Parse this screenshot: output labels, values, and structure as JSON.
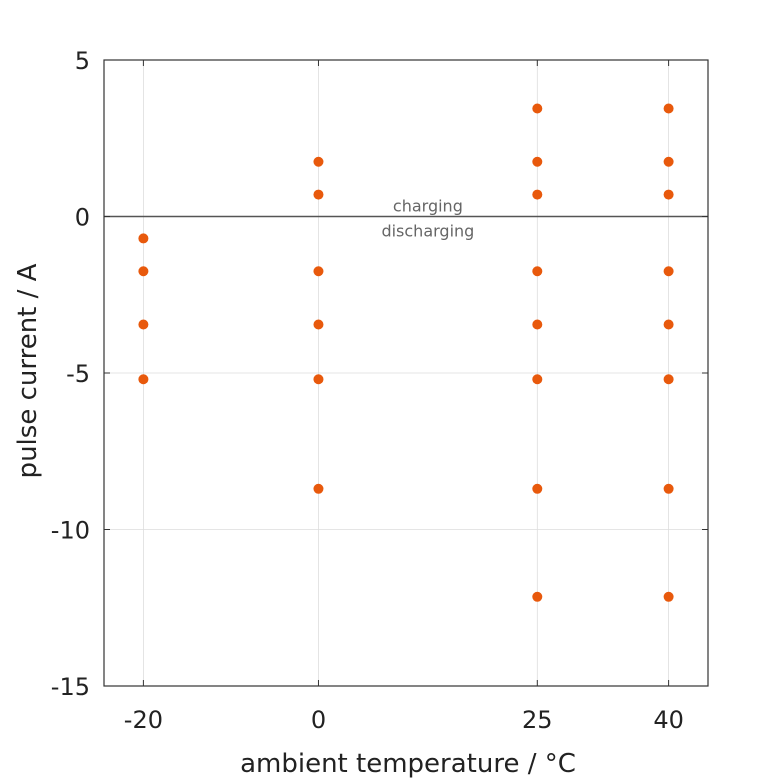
{
  "chart_data": {
    "type": "scatter",
    "xlabel": "ambient temperature / °C",
    "ylabel": "pulse current / A",
    "x_ticks": [
      {
        "value": -20,
        "label": "-20"
      },
      {
        "value": 0,
        "label": "0"
      },
      {
        "value": 25,
        "label": "25"
      },
      {
        "value": 40,
        "label": "40"
      }
    ],
    "y_ticks": [
      {
        "value": 5,
        "label": "5"
      },
      {
        "value": 0,
        "label": "0"
      },
      {
        "value": -5,
        "label": "-5"
      },
      {
        "value": -10,
        "label": "-10"
      },
      {
        "value": -15,
        "label": "-15"
      }
    ],
    "xlim": [
      -24.5,
      44.5
    ],
    "ylim": [
      -15,
      5
    ],
    "grid": true,
    "zero_line": true,
    "annotations": [
      {
        "text": "charging",
        "x": 12.5,
        "y": 0.35
      },
      {
        "text": "discharging",
        "x": 12.5,
        "y": -0.45
      }
    ],
    "marker_color": "#E8590C",
    "series": [
      {
        "points": [
          {
            "x": -20,
            "y": -0.7
          },
          {
            "x": -20,
            "y": -1.75
          },
          {
            "x": -20,
            "y": -3.45
          },
          {
            "x": -20,
            "y": -5.2
          },
          {
            "x": 0,
            "y": 1.75
          },
          {
            "x": 0,
            "y": 0.7
          },
          {
            "x": 0,
            "y": -1.75
          },
          {
            "x": 0,
            "y": -3.45
          },
          {
            "x": 0,
            "y": -5.2
          },
          {
            "x": 0,
            "y": -8.7
          },
          {
            "x": 25,
            "y": 3.45
          },
          {
            "x": 25,
            "y": 1.75
          },
          {
            "x": 25,
            "y": 0.7
          },
          {
            "x": 25,
            "y": -1.75
          },
          {
            "x": 25,
            "y": -3.45
          },
          {
            "x": 25,
            "y": -5.2
          },
          {
            "x": 25,
            "y": -8.7
          },
          {
            "x": 25,
            "y": -12.15
          },
          {
            "x": 40,
            "y": 3.45
          },
          {
            "x": 40,
            "y": 1.75
          },
          {
            "x": 40,
            "y": 0.7
          },
          {
            "x": 40,
            "y": -1.75
          },
          {
            "x": 40,
            "y": -3.45
          },
          {
            "x": 40,
            "y": -5.2
          },
          {
            "x": 40,
            "y": -8.7
          },
          {
            "x": 40,
            "y": -12.15
          }
        ]
      }
    ]
  }
}
